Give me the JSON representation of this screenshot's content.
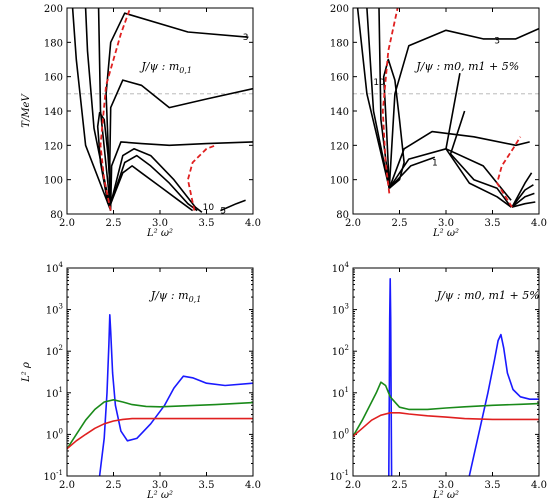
{
  "chart_data": [
    {
      "type": "contour",
      "title": "J/ψ : m0,1",
      "xlabel": "L² ω²",
      "ylabel": "T/MeV",
      "xlim": [
        2.0,
        4.0
      ],
      "ylim": [
        80,
        200
      ],
      "xticks": [
        "2.0",
        "2.5",
        "3.0",
        "3.5",
        "4.0"
      ],
      "yticks": [
        "80",
        "100",
        "120",
        "140",
        "160",
        "180",
        "200"
      ],
      "hline": {
        "y": 150,
        "style": "dashed",
        "color": "#b0b0b0"
      },
      "contour_labels": [
        {
          "text": "3",
          "x": 3.92,
          "y": 183
        },
        {
          "text": "10",
          "x": 3.52,
          "y": 84
        },
        {
          "text": "5",
          "x": 3.68,
          "y": 82
        }
      ],
      "series": [
        {
          "color": "#000000",
          "style": "solid",
          "points": [
            [
              2.47,
              82
            ],
            [
              2.2,
              120
            ],
            [
              2.1,
              170
            ],
            [
              2.06,
              200
            ]
          ]
        },
        {
          "color": "#000000",
          "style": "solid",
          "points": [
            [
              2.47,
              82
            ],
            [
              2.29,
              130
            ],
            [
              2.22,
              175
            ],
            [
              2.2,
              200
            ]
          ]
        },
        {
          "color": "#000000",
          "style": "solid",
          "points": [
            [
              2.47,
              82
            ],
            [
              2.36,
              140
            ],
            [
              2.34,
              200
            ]
          ]
        },
        {
          "color": "#000000",
          "style": "solid",
          "points": [
            [
              2.47,
              82
            ],
            [
              2.42,
              150
            ],
            [
              2.47,
              180
            ],
            [
              2.62,
              197
            ],
            [
              3.3,
              186
            ],
            [
              3.95,
              183
            ]
          ]
        },
        {
          "color": "#000000",
          "style": "solid",
          "points": [
            [
              2.47,
              84
            ],
            [
              2.46,
              110
            ],
            [
              2.47,
              142
            ],
            [
              2.6,
              158
            ],
            [
              2.8,
              155
            ],
            [
              3.1,
              142
            ],
            [
              3.5,
              147
            ],
            [
              4.0,
              153
            ]
          ]
        },
        {
          "color": "#000000",
          "style": "solid",
          "points": [
            [
              2.47,
              84
            ],
            [
              2.48,
              108
            ],
            [
              2.58,
              122
            ],
            [
              2.8,
              121
            ],
            [
              3.1,
              120
            ],
            [
              3.5,
              121
            ],
            [
              4.0,
              122
            ]
          ]
        },
        {
          "color": "#000000",
          "style": "solid",
          "points": [
            [
              2.44,
              86
            ],
            [
              2.36,
              110
            ],
            [
              2.33,
              131
            ],
            [
              2.35,
              139
            ],
            [
              2.4,
              135
            ],
            [
              2.44,
              115
            ],
            [
              2.47,
              90
            ]
          ]
        },
        {
          "color": "#000000",
          "style": "solid",
          "points": [
            [
              2.47,
              86
            ],
            [
              2.6,
              104
            ],
            [
              2.7,
              108
            ],
            [
              2.8,
              104
            ],
            [
              3.0,
              96
            ],
            [
              3.2,
              88
            ],
            [
              3.35,
              82
            ]
          ]
        },
        {
          "color": "#000000",
          "style": "solid",
          "points": [
            [
              2.47,
              86
            ],
            [
              2.62,
              110
            ],
            [
              2.75,
              114
            ],
            [
              2.9,
              108
            ],
            [
              3.1,
              98
            ],
            [
              3.3,
              86
            ],
            [
              3.4,
              82
            ]
          ]
        },
        {
          "color": "#000000",
          "style": "solid",
          "points": [
            [
              2.47,
              86
            ],
            [
              2.6,
              114
            ],
            [
              2.72,
              118
            ],
            [
              2.9,
              114
            ],
            [
              3.15,
              100
            ],
            [
              3.38,
              84
            ],
            [
              3.45,
              81
            ]
          ]
        },
        {
          "color": "#000000",
          "style": "solid",
          "points": [
            [
              3.65,
              82
            ],
            [
              3.82,
              86
            ],
            [
              3.92,
              88
            ]
          ]
        },
        {
          "color": "#e02020",
          "style": "dashed",
          "points": [
            [
              2.47,
              82
            ],
            [
              2.4,
              100
            ],
            [
              2.36,
              120
            ],
            [
              2.42,
              155
            ],
            [
              2.58,
              185
            ],
            [
              2.68,
              200
            ]
          ]
        },
        {
          "color": "#e02020",
          "style": "dashed",
          "points": [
            [
              3.37,
              82
            ],
            [
              3.3,
              100
            ],
            [
              3.35,
              110
            ],
            [
              3.5,
              118
            ],
            [
              3.6,
              120
            ]
          ]
        }
      ]
    },
    {
      "type": "contour",
      "title": "J/ψ : m0, m1 + 5%",
      "xlabel": "L² ω²",
      "ylabel": "",
      "xlim": [
        2.0,
        4.0
      ],
      "ylim": [
        80,
        200
      ],
      "xticks": [
        "2.0",
        "2.5",
        "3.0",
        "3.5",
        "4.0"
      ],
      "yticks": [
        "80",
        "100",
        "120",
        "140",
        "160",
        "180",
        "200"
      ],
      "hline": {
        "y": 150,
        "style": "dashed",
        "color": "#b0b0b0"
      },
      "contour_labels": [
        {
          "text": "3",
          "x": 3.55,
          "y": 181
        },
        {
          "text": "10",
          "x": 2.28,
          "y": 157
        },
        {
          "text": "1",
          "x": 2.88,
          "y": 110
        }
      ],
      "series": [
        {
          "color": "#000000",
          "style": "solid",
          "points": [
            [
              2.39,
              95
            ],
            [
              2.15,
              150
            ],
            [
              2.05,
              200
            ]
          ]
        },
        {
          "color": "#000000",
          "style": "solid",
          "points": [
            [
              2.39,
              95
            ],
            [
              2.22,
              140
            ],
            [
              2.15,
              200
            ]
          ]
        },
        {
          "color": "#000000",
          "style": "solid",
          "points": [
            [
              2.39,
              95
            ],
            [
              2.3,
              135
            ],
            [
              2.28,
              200
            ]
          ]
        },
        {
          "color": "#000000",
          "style": "solid",
          "points": [
            [
              2.39,
              95
            ],
            [
              2.45,
              150
            ],
            [
              2.6,
              178
            ],
            [
              3.0,
              187
            ],
            [
              3.4,
              182
            ],
            [
              3.75,
              182
            ],
            [
              4.0,
              188
            ]
          ]
        },
        {
          "color": "#000000",
          "style": "solid",
          "points": [
            [
              2.39,
              95
            ],
            [
              2.36,
              130
            ],
            [
              2.33,
              160
            ],
            [
              2.38,
              170
            ],
            [
              2.45,
              158
            ],
            [
              2.5,
              135
            ],
            [
              2.55,
              110
            ],
            [
              2.5,
              100
            ],
            [
              2.39,
              95
            ]
          ]
        },
        {
          "color": "#000000",
          "style": "solid",
          "points": [
            [
              2.39,
              95
            ],
            [
              2.55,
              118
            ],
            [
              2.85,
              128
            ],
            [
              3.3,
              125
            ],
            [
              3.75,
              120
            ],
            [
              3.9,
              122
            ]
          ]
        },
        {
          "color": "#000000",
          "style": "solid",
          "points": [
            [
              2.39,
              95
            ],
            [
              2.6,
              112
            ],
            [
              3.0,
              118
            ],
            [
              3.4,
              108
            ],
            [
              3.7,
              88
            ]
          ]
        },
        {
          "color": "#000000",
          "style": "solid",
          "points": [
            [
              2.39,
              95
            ],
            [
              2.62,
              108
            ],
            [
              2.88,
              113
            ]
          ]
        },
        {
          "color": "#000000",
          "style": "solid",
          "points": [
            [
              3.2,
              140
            ],
            [
              3.05,
              115
            ],
            [
              3.3,
              100
            ],
            [
              3.55,
              95
            ],
            [
              3.7,
              84
            ]
          ]
        },
        {
          "color": "#000000",
          "style": "solid",
          "points": [
            [
              3.15,
              162
            ],
            [
              3.0,
              118
            ],
            [
              3.25,
              98
            ],
            [
              3.55,
              90
            ],
            [
              3.7,
              84
            ]
          ]
        },
        {
          "color": "#000000",
          "style": "solid",
          "points": [
            [
              3.71,
              84
            ],
            [
              3.85,
              98
            ],
            [
              3.92,
              104
            ]
          ]
        },
        {
          "color": "#000000",
          "style": "solid",
          "points": [
            [
              3.71,
              84
            ],
            [
              3.85,
              94
            ],
            [
              3.94,
              97
            ]
          ]
        },
        {
          "color": "#000000",
          "style": "solid",
          "points": [
            [
              3.71,
              84
            ],
            [
              3.85,
              90
            ],
            [
              3.95,
              92
            ]
          ]
        },
        {
          "color": "#000000",
          "style": "solid",
          "points": [
            [
              3.71,
              84
            ],
            [
              3.85,
              86
            ],
            [
              3.96,
              87
            ]
          ]
        },
        {
          "color": "#e02020",
          "style": "dashed",
          "points": [
            [
              2.39,
              92
            ],
            [
              2.35,
              110
            ],
            [
              2.32,
              140
            ],
            [
              2.38,
              175
            ],
            [
              2.48,
              200
            ]
          ]
        },
        {
          "color": "#e02020",
          "style": "dashed",
          "points": [
            [
              3.71,
              84
            ],
            [
              3.55,
              98
            ],
            [
              3.6,
              108
            ],
            [
              3.72,
              118
            ],
            [
              3.8,
              125
            ]
          ]
        }
      ]
    },
    {
      "type": "line",
      "title": "J/ψ : m0,1",
      "xlabel": "L² ω²",
      "ylabel": "L² ρ",
      "xlim": [
        2.0,
        4.0
      ],
      "ylim_log10": [
        -1,
        4
      ],
      "yscale": "log",
      "xticks": [
        "2.0",
        "2.5",
        "3.0",
        "3.5",
        "4.0"
      ],
      "yticks_base": "10",
      "yticks_exp": [
        "-1",
        "0",
        "1",
        "2",
        "3",
        "4"
      ],
      "series": [
        {
          "color": "#1a1aff",
          "x": [
            2.35,
            2.4,
            2.43,
            2.45,
            2.46,
            2.47,
            2.49,
            2.52,
            2.58,
            2.65,
            2.75,
            2.9,
            3.05,
            3.15,
            3.25,
            3.35,
            3.5,
            3.7,
            4.0
          ],
          "y": [
            0.1,
            0.8,
            10,
            150,
            750,
            300,
            30,
            5,
            1.2,
            0.7,
            0.8,
            1.8,
            5,
            13,
            25,
            23,
            17,
            15,
            17
          ]
        },
        {
          "color": "#1a8a1a",
          "x": [
            2.0,
            2.1,
            2.2,
            2.3,
            2.4,
            2.5,
            2.6,
            2.7,
            2.85,
            3.0,
            3.2,
            3.4,
            3.6,
            3.8,
            4.0
          ],
          "y": [
            0.45,
            1.0,
            2.2,
            4.0,
            6.0,
            6.8,
            6.0,
            5.2,
            4.7,
            4.6,
            4.8,
            5.0,
            5.2,
            5.5,
            5.8
          ]
        },
        {
          "color": "#e02020",
          "x": [
            2.0,
            2.1,
            2.2,
            2.3,
            2.4,
            2.5,
            2.6,
            2.7,
            2.8,
            3.0,
            3.5,
            4.0
          ],
          "y": [
            0.45,
            0.7,
            1.0,
            1.4,
            1.8,
            2.1,
            2.3,
            2.4,
            2.4,
            2.4,
            2.4,
            2.4
          ]
        }
      ]
    },
    {
      "type": "line",
      "title": "J/ψ : m0, m1 + 5%",
      "xlabel": "L² ω²",
      "ylabel": "",
      "xlim": [
        2.0,
        4.0
      ],
      "ylim_log10": [
        -1,
        4
      ],
      "yscale": "log",
      "xticks": [
        "2.0",
        "2.5",
        "3.0",
        "3.5",
        "4.0"
      ],
      "yticks_base": "10",
      "yticks_exp": [
        "-1",
        "0",
        "1",
        "2",
        "3",
        "4"
      ],
      "series": [
        {
          "color": "#1a1aff",
          "x": [
            2.385,
            2.39,
            2.395,
            2.4,
            2.405,
            2.41,
            2.415
          ],
          "y": [
            0.1,
            10,
            600,
            5500,
            600,
            10,
            0.1
          ]
        },
        {
          "color": "#1a1aff",
          "x": [
            3.25,
            3.35,
            3.45,
            3.52,
            3.56,
            3.59,
            3.62,
            3.66,
            3.72,
            3.8,
            3.9,
            4.0
          ],
          "y": [
            0.1,
            1,
            10,
            60,
            180,
            250,
            120,
            30,
            12,
            8,
            7,
            7
          ]
        },
        {
          "color": "#1a8a1a",
          "x": [
            2.0,
            2.1,
            2.2,
            2.25,
            2.3,
            2.35,
            2.4,
            2.5,
            2.6,
            2.8,
            3.0,
            3.2,
            3.5,
            3.8,
            4.0
          ],
          "y": [
            0.9,
            2.2,
            6,
            10,
            18,
            15,
            8,
            4.5,
            4.0,
            4.0,
            4.3,
            4.6,
            5.0,
            5.3,
            5.5
          ]
        },
        {
          "color": "#e02020",
          "x": [
            2.0,
            2.1,
            2.2,
            2.3,
            2.4,
            2.5,
            2.6,
            2.8,
            3.0,
            3.2,
            3.5,
            3.8,
            4.0
          ],
          "y": [
            0.9,
            1.4,
            2.2,
            2.9,
            3.3,
            3.3,
            3.1,
            2.8,
            2.6,
            2.4,
            2.3,
            2.3,
            2.3
          ]
        }
      ]
    }
  ]
}
